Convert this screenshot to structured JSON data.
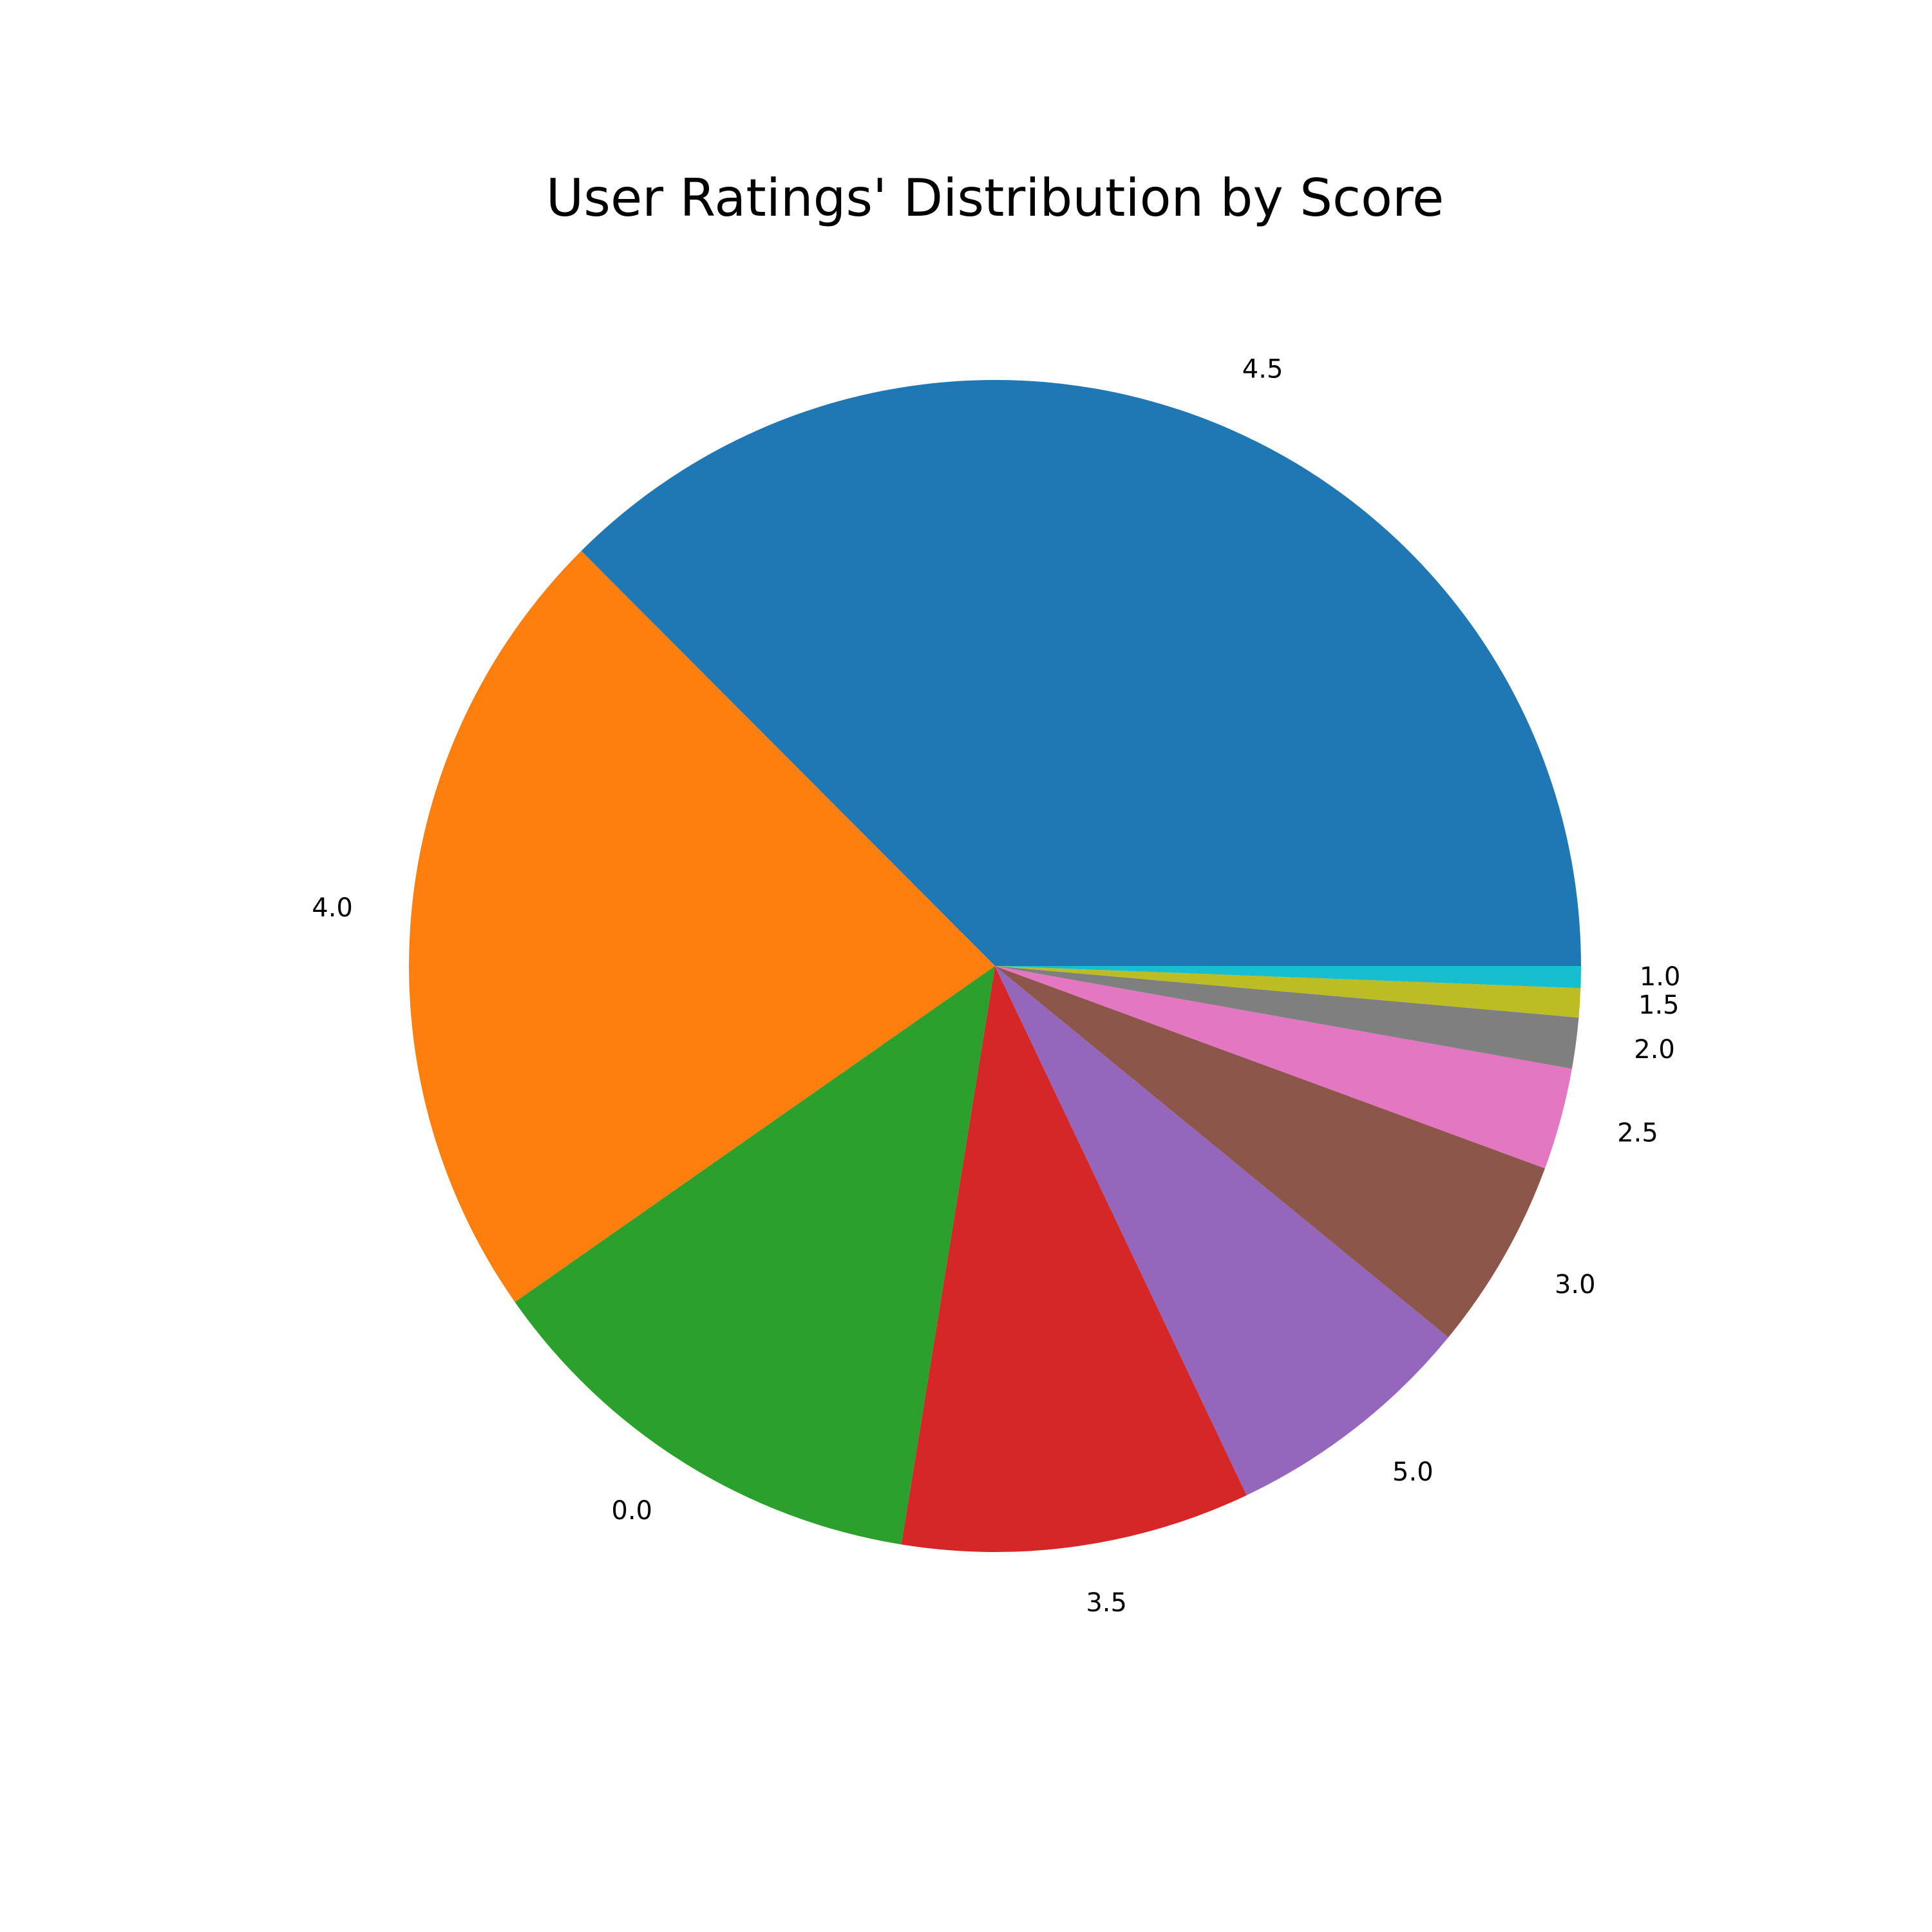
{
  "chart_data": {
    "type": "pie",
    "title": "User Ratings' Distribution by Score",
    "start_angle_deg": 0,
    "direction": "counterclockwise",
    "slices": [
      {
        "label": "4.5",
        "value": 37.4,
        "color": "#1f77b4"
      },
      {
        "label": "4.0",
        "value": 22.2,
        "color": "#ff7f0e"
      },
      {
        "label": "0.0",
        "value": 12.7,
        "color": "#2ca02c"
      },
      {
        "label": "3.5",
        "value": 9.6,
        "color": "#d62728"
      },
      {
        "label": "5.0",
        "value": 7.0,
        "color": "#9467bd"
      },
      {
        "label": "3.0",
        "value": 5.3,
        "color": "#8c564b"
      },
      {
        "label": "2.5",
        "value": 2.8,
        "color": "#e377c2"
      },
      {
        "label": "2.0",
        "value": 1.4,
        "color": "#7f7f7f"
      },
      {
        "label": "1.5",
        "value": 0.8,
        "color": "#bcbd22"
      },
      {
        "label": "1.0",
        "value": 0.6,
        "color": "#17becf"
      }
    ]
  }
}
